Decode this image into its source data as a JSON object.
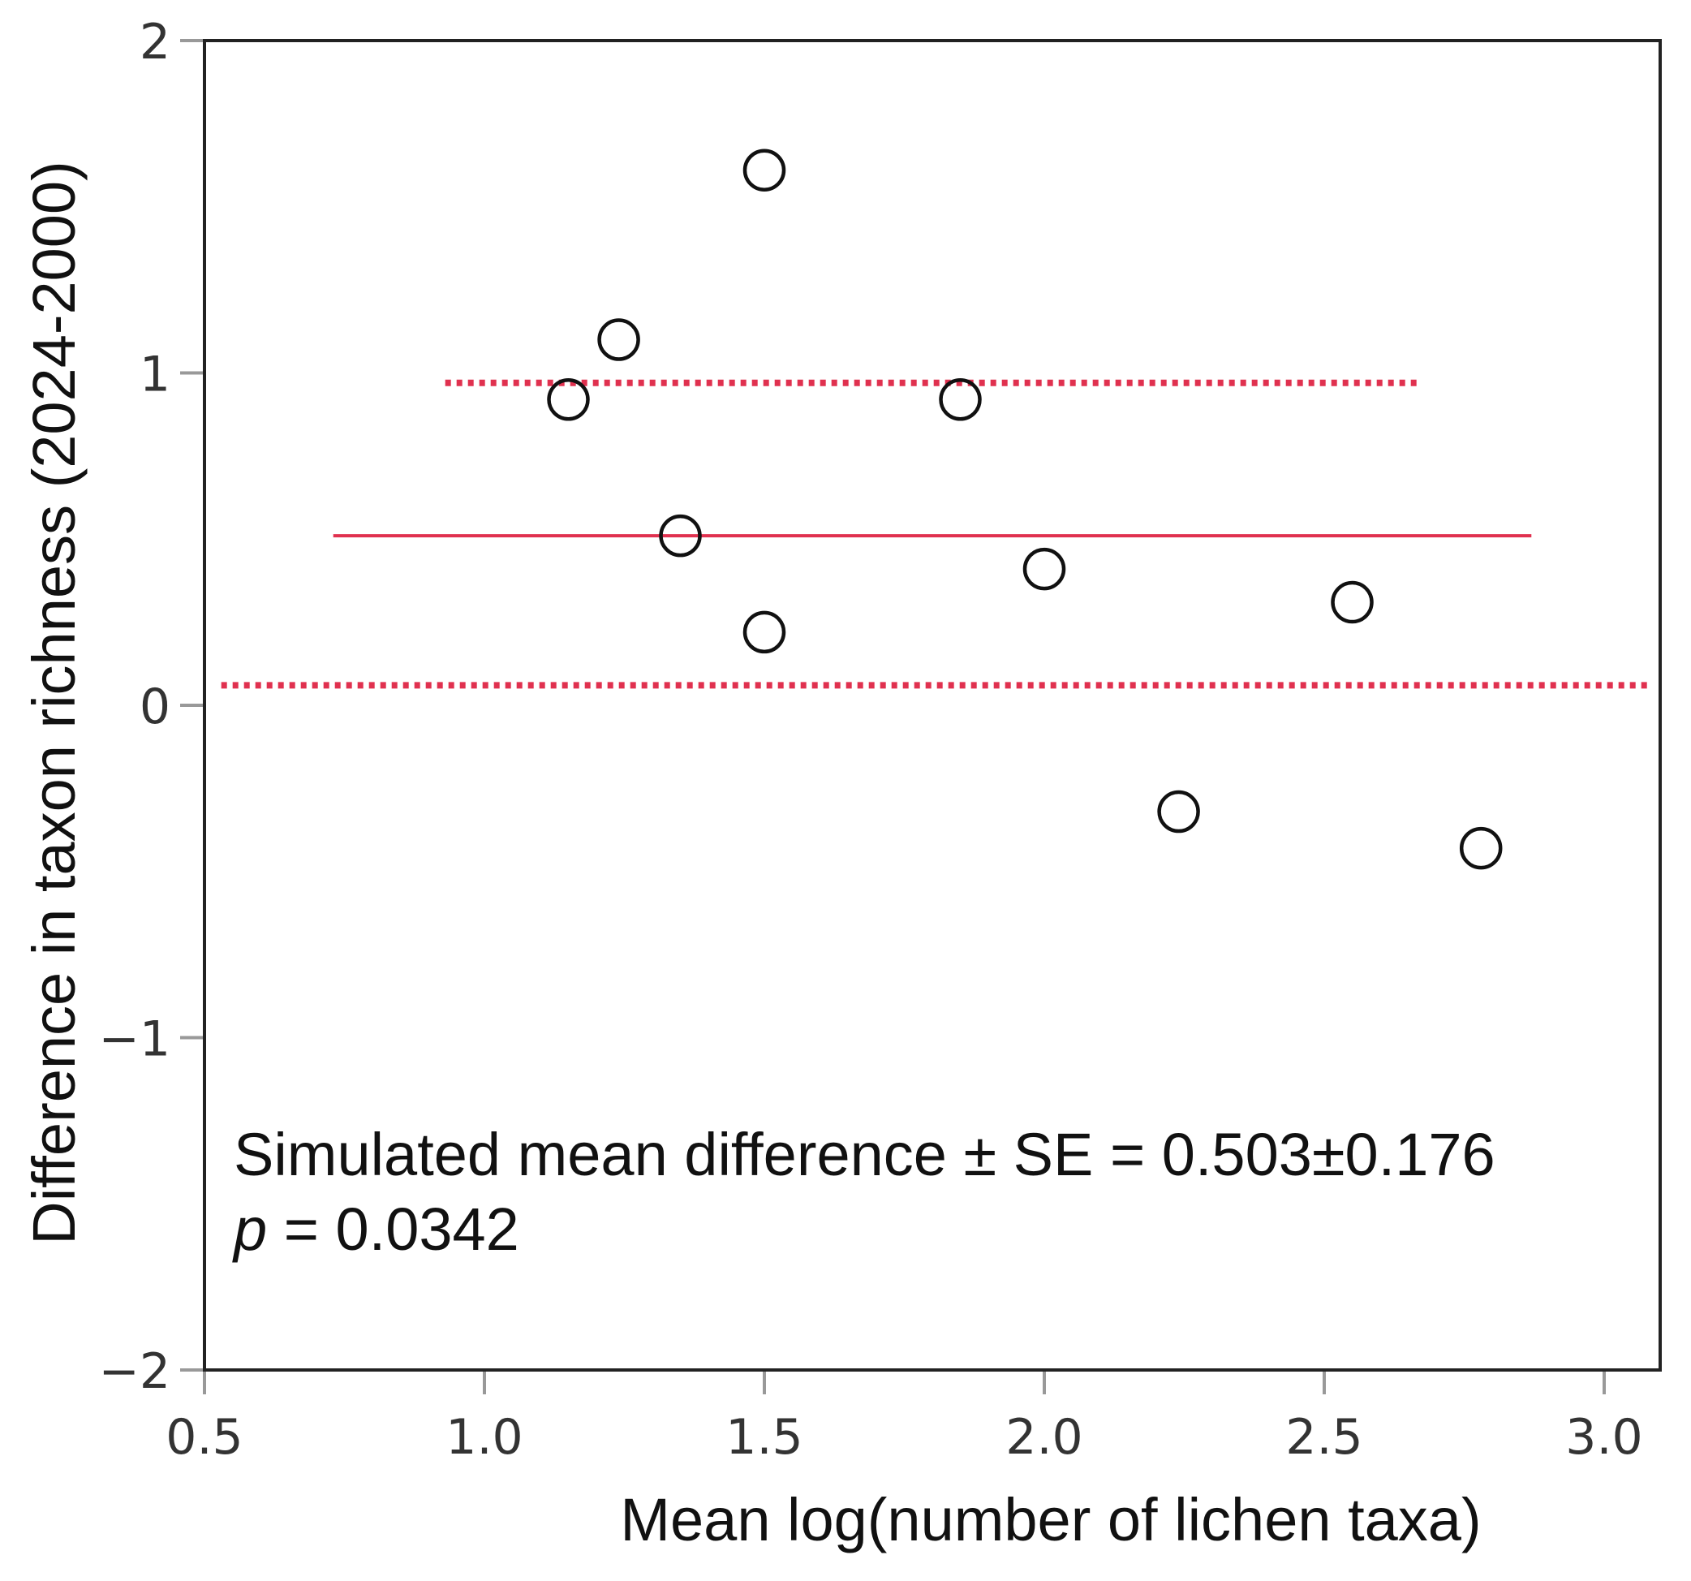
{
  "chart_data": {
    "type": "scatter",
    "title": "",
    "xlabel": "Mean log(number of lichen taxa)",
    "ylabel": "Difference in taxon richness (2024-2000)",
    "xlim": [
      0.5,
      3.1
    ],
    "ylim": [
      -2,
      2
    ],
    "xticks": [
      0.5,
      1.0,
      1.5,
      2.0,
      2.5,
      3.0
    ],
    "xtick_labels": [
      "0.5",
      "1.0",
      "1.5",
      "2.0",
      "2.5",
      "3.0"
    ],
    "yticks": [
      -2,
      -1,
      0,
      1,
      2
    ],
    "ytick_labels": [
      "−2",
      "−1",
      "0",
      "1",
      "2"
    ],
    "grid": false,
    "series": [
      {
        "name": "plots",
        "marker": "open-circle",
        "points": [
          {
            "x": 1.15,
            "y": 0.92
          },
          {
            "x": 1.24,
            "y": 1.1
          },
          {
            "x": 1.35,
            "y": 0.51
          },
          {
            "x": 1.5,
            "y": 1.61
          },
          {
            "x": 1.5,
            "y": 0.22
          },
          {
            "x": 1.85,
            "y": 0.92
          },
          {
            "x": 2.0,
            "y": 0.41
          },
          {
            "x": 2.24,
            "y": -0.32
          },
          {
            "x": 2.55,
            "y": 0.31
          },
          {
            "x": 2.78,
            "y": -0.43
          }
        ]
      }
    ],
    "reference_lines": [
      {
        "name": "simulated mean",
        "style": "solid",
        "y": 0.51,
        "x_from": 0.73,
        "x_to": 2.87
      },
      {
        "name": "upper bound",
        "style": "dotted",
        "y": 0.97,
        "x_from": 0.93,
        "x_to": 2.67
      },
      {
        "name": "lower bound",
        "style": "dotted",
        "y": 0.06,
        "x_from": 0.53,
        "x_to": 3.08
      }
    ],
    "annotations": [
      {
        "text": "Simulated mean difference ± SE = 0.503±0.176"
      },
      {
        "text_italic": "p",
        "text": " = 0.0342"
      }
    ],
    "colors": {
      "reference": "#e0314f",
      "marker": "#111111",
      "frame": "#222222",
      "tick": "#999999"
    }
  }
}
